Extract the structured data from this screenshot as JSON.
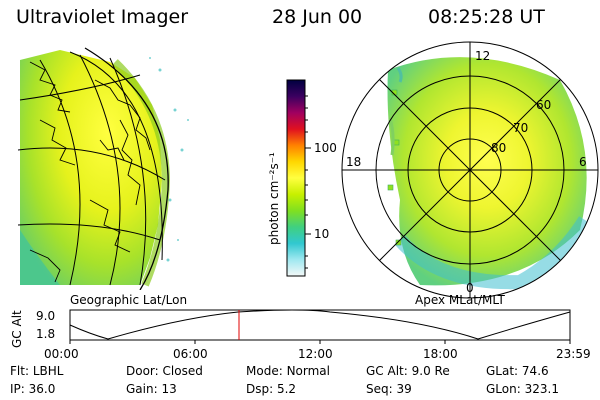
{
  "header": {
    "instrument": "Ultraviolet Imager",
    "date": "28 Jun 00",
    "time": "08:25:28 UT"
  },
  "left_panel": {
    "caption": "Geographic Lat/Lon"
  },
  "right_panel": {
    "caption": "Apex MLat/MLT",
    "mlt_labels": [
      "12",
      "18",
      "6",
      "0"
    ],
    "mlat_labels": [
      "60",
      "70",
      "80"
    ]
  },
  "colorbar": {
    "unit_label": "photon cm⁻²s⁻¹",
    "tick_labels": [
      "100",
      "10"
    ],
    "colors": [
      "#000040",
      "#3a0060",
      "#a00060",
      "#e01020",
      "#ff8000",
      "#ffd700",
      "#ffff40",
      "#c8f000",
      "#80e020",
      "#40d080",
      "#30c8d0",
      "#a0e8f0",
      "#f4f8f8"
    ]
  },
  "altitude_track": {
    "ylabel": "GC Alt",
    "ytick_labels": [
      "9.0",
      "1.8"
    ],
    "xtick_labels": [
      "00:00",
      "06:00",
      "12:00",
      "18:00",
      "23:59"
    ],
    "current_marker_color": "#e00000"
  },
  "status": {
    "row1": [
      {
        "label": "Flt:",
        "value": "LBHL"
      },
      {
        "label": "Door:",
        "value": "Closed"
      },
      {
        "label": "Mode:",
        "value": "Normal"
      },
      {
        "label": "GC Alt:",
        "value": "9.0 Re"
      },
      {
        "label": "GLat:",
        "value": "74.6"
      }
    ],
    "row2": [
      {
        "label": "IP:",
        "value": "36.0"
      },
      {
        "label": "Gain:",
        "value": "13"
      },
      {
        "label": "Dsp:",
        "value": "5.2"
      },
      {
        "label": "Seq:",
        "value": "39"
      },
      {
        "label": "GLon:",
        "value": "323.1"
      }
    ]
  }
}
